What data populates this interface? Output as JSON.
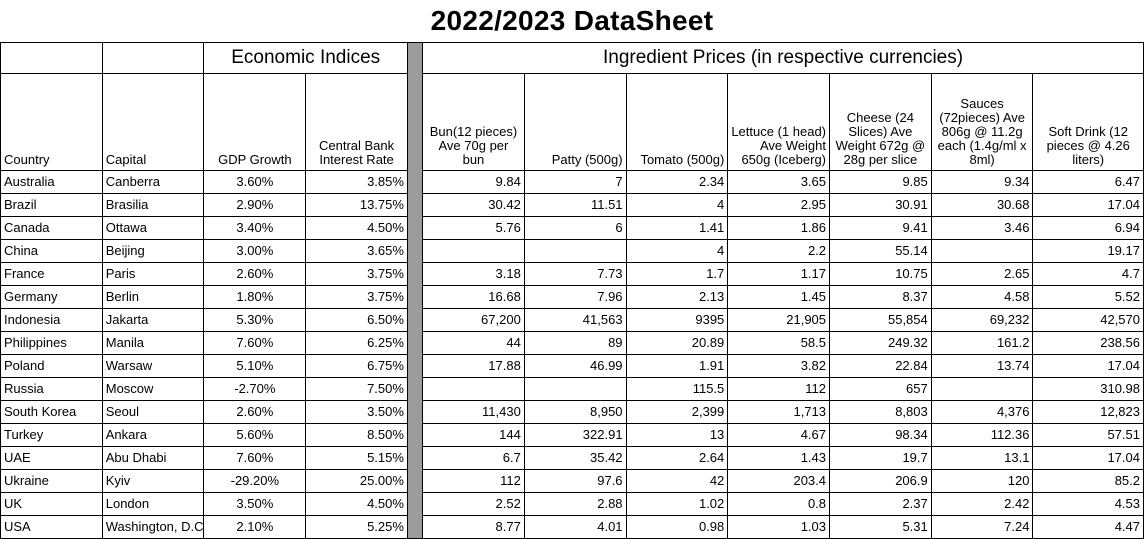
{
  "title": "2022/2023 DataSheet",
  "groups": {
    "economic": "Economic Indices",
    "ingredients": "Ingredient Prices (in respective currencies)"
  },
  "headers": {
    "country": "Country",
    "capital": "Capital",
    "gdp": "GDP Growth",
    "rate": "Central Bank\nInterest Rate",
    "bun": "Bun(12 pieces)\nAve 70g per\nbun",
    "patty": "Patty (500g)",
    "tomato": "Tomato (500g)",
    "lettuce": "Lettuce\n(1 head)\nAve Weight\n650g (Iceberg)",
    "cheese": "Cheese\n(24 Slices)\nAve Weight\n672g @ 28g\nper slice",
    "sauces": "Sauces\n(72pieces)\nAve 806g @\n11.2g each\n(1.4g/ml x 8ml)",
    "drink": "Soft Drink\n(12 pieces @\n4.26 liters)"
  },
  "rows": [
    {
      "country": "Australia",
      "capital": "Canberra",
      "gdp": "3.60%",
      "rate": "3.85%",
      "bun": "9.84",
      "patty": "7",
      "tomato": "2.34",
      "lettuce": "3.65",
      "cheese": "9.85",
      "sauces": "9.34",
      "drink": "6.47"
    },
    {
      "country": "Brazil",
      "capital": "Brasilia",
      "gdp": "2.90%",
      "rate": "13.75%",
      "bun": "30.42",
      "patty": "11.51",
      "tomato": "4",
      "lettuce": "2.95",
      "cheese": "30.91",
      "sauces": "30.68",
      "drink": "17.04"
    },
    {
      "country": "Canada",
      "capital": "Ottawa",
      "gdp": "3.40%",
      "rate": "4.50%",
      "bun": "5.76",
      "patty": "6",
      "tomato": "1.41",
      "lettuce": "1.86",
      "cheese": "9.41",
      "sauces": "3.46",
      "drink": "6.94"
    },
    {
      "country": "China",
      "capital": "Beijing",
      "gdp": "3.00%",
      "rate": "3.65%",
      "bun": "",
      "patty": "",
      "tomato": "4",
      "lettuce": "2.2",
      "cheese": "55.14",
      "sauces": "",
      "drink": "19.17"
    },
    {
      "country": "France",
      "capital": "Paris",
      "gdp": "2.60%",
      "rate": "3.75%",
      "bun": "3.18",
      "patty": "7.73",
      "tomato": "1.7",
      "lettuce": "1.17",
      "cheese": "10.75",
      "sauces": "2.65",
      "drink": "4.7"
    },
    {
      "country": "Germany",
      "capital": "Berlin",
      "gdp": "1.80%",
      "rate": "3.75%",
      "bun": "16.68",
      "patty": "7.96",
      "tomato": "2.13",
      "lettuce": "1.45",
      "cheese": "8.37",
      "sauces": "4.58",
      "drink": "5.52"
    },
    {
      "country": "Indonesia",
      "capital": "Jakarta",
      "gdp": "5.30%",
      "rate": "6.50%",
      "bun": "67,200",
      "patty": "41,563",
      "tomato": "9395",
      "lettuce": "21,905",
      "cheese": "55,854",
      "sauces": "69,232",
      "drink": "42,570"
    },
    {
      "country": "Philippines",
      "capital": "Manila",
      "gdp": "7.60%",
      "rate": "6.25%",
      "bun": "44",
      "patty": "89",
      "tomato": "20.89",
      "lettuce": "58.5",
      "cheese": "249.32",
      "sauces": "161.2",
      "drink": "238.56"
    },
    {
      "country": "Poland",
      "capital": "Warsaw",
      "gdp": "5.10%",
      "rate": "6.75%",
      "bun": "17.88",
      "patty": "46.99",
      "tomato": "1.91",
      "lettuce": "3.82",
      "cheese": "22.84",
      "sauces": "13.74",
      "drink": "17.04"
    },
    {
      "country": "Russia",
      "capital": "Moscow",
      "gdp": "-2.70%",
      "rate": "7.50%",
      "bun": "",
      "patty": "",
      "tomato": "115.5",
      "lettuce": "112",
      "cheese": "657",
      "sauces": "",
      "drink": "310.98"
    },
    {
      "country": "South Korea",
      "capital": "Seoul",
      "gdp": "2.60%",
      "rate": "3.50%",
      "bun": "11,430",
      "patty": "8,950",
      "tomato": "2,399",
      "lettuce": "1,713",
      "cheese": "8,803",
      "sauces": "4,376",
      "drink": "12,823"
    },
    {
      "country": "Turkey",
      "capital": "Ankara",
      "gdp": "5.60%",
      "rate": "8.50%",
      "bun": "144",
      "patty": "322.91",
      "tomato": "13",
      "lettuce": "4.67",
      "cheese": "98.34",
      "sauces": "112.36",
      "drink": "57.51"
    },
    {
      "country": "UAE",
      "capital": "Abu Dhabi",
      "gdp": "7.60%",
      "rate": "5.15%",
      "bun": "6.7",
      "patty": "35.42",
      "tomato": "2.64",
      "lettuce": "1.43",
      "cheese": "19.7",
      "sauces": "13.1",
      "drink": "17.04"
    },
    {
      "country": "Ukraine",
      "capital": "Kyiv",
      "gdp": "-29.20%",
      "rate": "25.00%",
      "bun": "112",
      "patty": "97.6",
      "tomato": "42",
      "lettuce": "203.4",
      "cheese": "206.9",
      "sauces": "120",
      "drink": "85.2"
    },
    {
      "country": "UK",
      "capital": "London",
      "gdp": "3.50%",
      "rate": "4.50%",
      "bun": "2.52",
      "patty": "2.88",
      "tomato": "1.02",
      "lettuce": "0.8",
      "cheese": "2.37",
      "sauces": "2.42",
      "drink": "4.53"
    },
    {
      "country": "USA",
      "capital": "Washington, D.C.",
      "gdp": "2.10%",
      "rate": "5.25%",
      "bun": "8.77",
      "patty": "4.01",
      "tomato": "0.98",
      "lettuce": "1.03",
      "cheese": "5.31",
      "sauces": "7.24",
      "drink": "4.47"
    }
  ]
}
